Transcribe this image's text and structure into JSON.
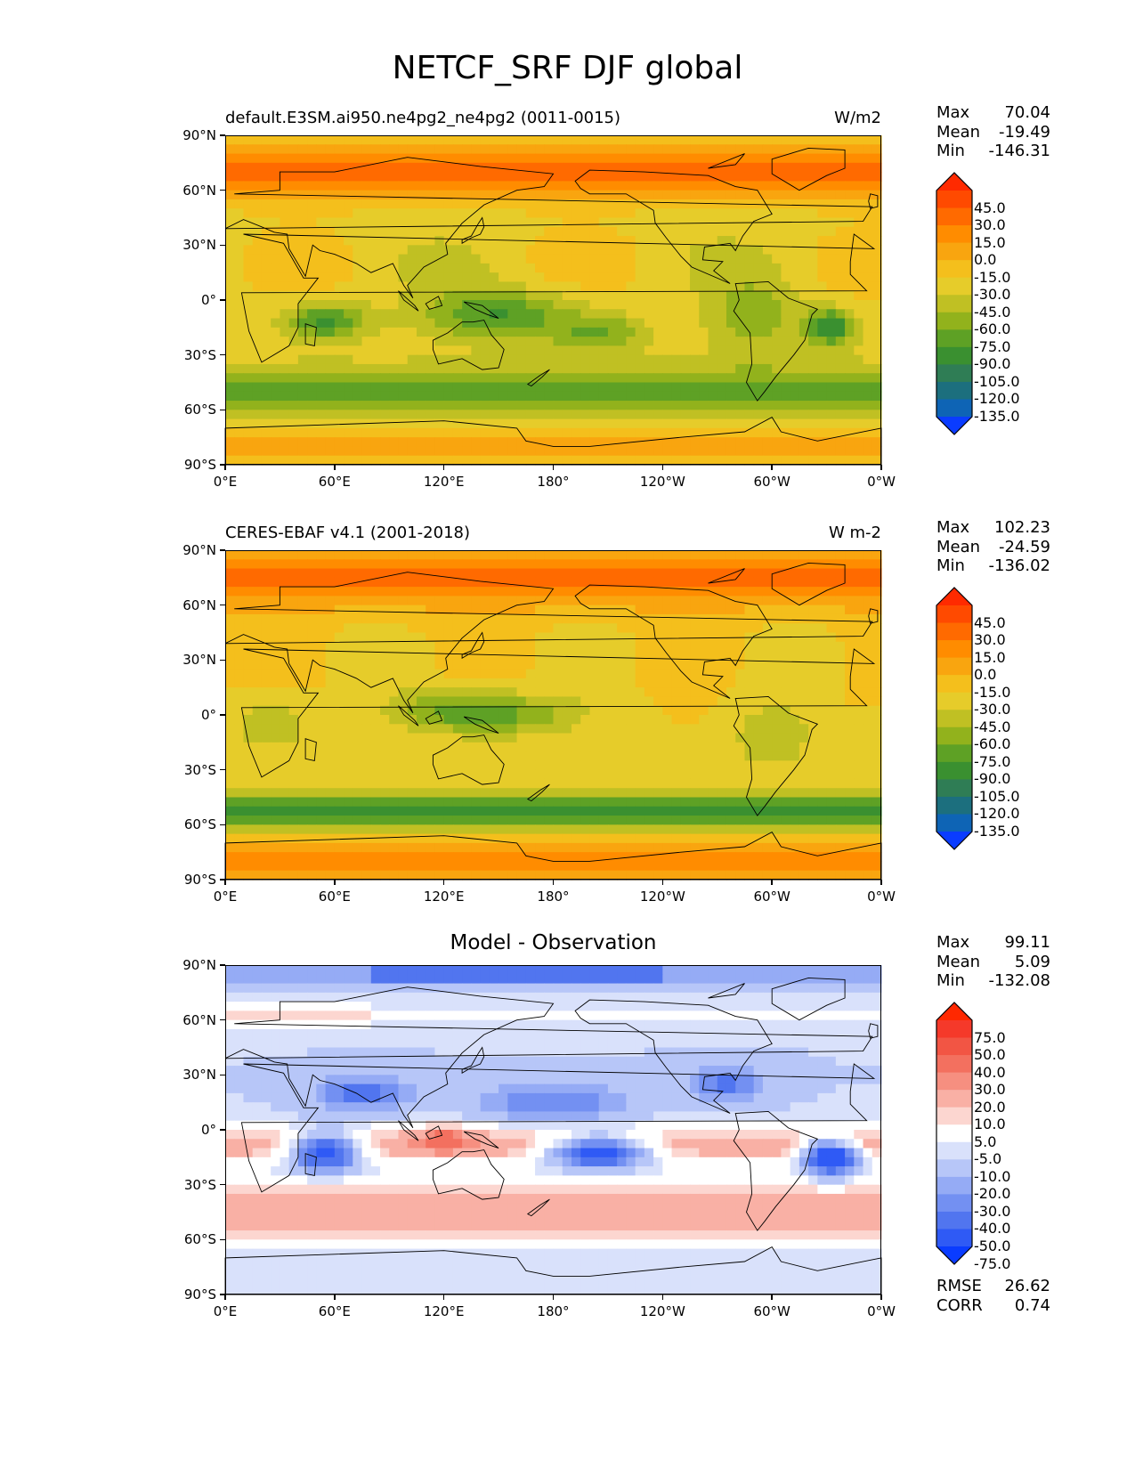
{
  "title": "NETCF_SRF DJF global",
  "panels": [
    {
      "left_title": "default.E3SM.ai950.ne4pg2_ne4pg2 (0011-0015)",
      "center_title": "",
      "right_title": "W/m2",
      "stats": [
        {
          "label": "Max",
          "value": "70.04"
        },
        {
          "label": "Mean",
          "value": "-19.49"
        },
        {
          "label": "Min",
          "value": "-146.31"
        }
      ],
      "footer_stats": [],
      "colorbar_levels": [
        "45.0",
        "30.0",
        "15.0",
        "0.0",
        "-15.0",
        "-30.0",
        "-45.0",
        "-60.0",
        "-75.0",
        "-90.0",
        "-105.0",
        "-120.0",
        "-135.0"
      ],
      "colorbar_colors": [
        "#ff2a00",
        "#ff4a00",
        "#ff6a00",
        "#ff8c00",
        "#f9a50f",
        "#f4bf1c",
        "#e6cc2a",
        "#c0c023",
        "#92b21c",
        "#5ea125",
        "#3a9030",
        "#2f7d55",
        "#1c6f7e",
        "#0e64b5",
        "#0a3cff"
      ]
    },
    {
      "left_title": "CERES-EBAF v4.1 (2001-2018)",
      "center_title": "",
      "right_title": "W m-2",
      "stats": [
        {
          "label": "Max",
          "value": "102.23"
        },
        {
          "label": "Mean",
          "value": "-24.59"
        },
        {
          "label": "Min",
          "value": "-136.02"
        }
      ],
      "footer_stats": [],
      "colorbar_levels": [
        "45.0",
        "30.0",
        "15.0",
        "0.0",
        "-15.0",
        "-30.0",
        "-45.0",
        "-60.0",
        "-75.0",
        "-90.0",
        "-105.0",
        "-120.0",
        "-135.0"
      ],
      "colorbar_colors": [
        "#ff2a00",
        "#ff4a00",
        "#ff6a00",
        "#ff8c00",
        "#f9a50f",
        "#f4bf1c",
        "#e6cc2a",
        "#c0c023",
        "#92b21c",
        "#5ea125",
        "#3a9030",
        "#2f7d55",
        "#1c6f7e",
        "#0e64b5",
        "#0a3cff"
      ]
    },
    {
      "left_title": "",
      "center_title": "Model - Observation",
      "right_title": "",
      "stats": [
        {
          "label": "Max",
          "value": "99.11"
        },
        {
          "label": "Mean",
          "value": "5.09"
        },
        {
          "label": "Min",
          "value": "-132.08"
        }
      ],
      "footer_stats": [
        {
          "label": "RMSE",
          "value": "26.62"
        },
        {
          "label": "CORR",
          "value": "0.74"
        }
      ],
      "colorbar_levels": [
        "75.0",
        "50.0",
        "40.0",
        "30.0",
        "20.0",
        "10.0",
        "5.0",
        "-5.0",
        "-10.0",
        "-20.0",
        "-30.0",
        "-40.0",
        "-50.0",
        "-75.0"
      ],
      "colorbar_colors": [
        "#ff2800",
        "#f5392a",
        "#f25544",
        "#f3705f",
        "#f68f80",
        "#f9b0a5",
        "#fcd6d0",
        "#ffffff",
        "#d9e1fb",
        "#b7c6f8",
        "#95abf5",
        "#7390f2",
        "#5175ef",
        "#2f5af5",
        "#0a3cff"
      ]
    }
  ],
  "axes": {
    "y_ticks": [
      "90°N",
      "60°N",
      "30°N",
      "0°",
      "30°S",
      "60°S",
      "90°S"
    ],
    "x_ticks": [
      "0°E",
      "60°E",
      "120°E",
      "180°",
      "120°W",
      "60°W",
      "0°W"
    ]
  },
  "chart_data": [
    {
      "type": "heatmap",
      "title": "default.E3SM.ai950.ne4pg2_ne4pg2 (0011-0015)",
      "units": "W/m2",
      "xlim": [
        0,
        360
      ],
      "ylim": [
        -90,
        90
      ],
      "xticks": [
        "0°E",
        "60°E",
        "120°E",
        "180°",
        "120°W",
        "60°W",
        "0°W"
      ],
      "yticks": [
        "90°N",
        "60°N",
        "30°N",
        "0°",
        "30°S",
        "60°S",
        "90°S"
      ],
      "max": 70.04,
      "mean": -19.49,
      "min": -146.31,
      "levels": [
        -135,
        -120,
        -105,
        -90,
        -75,
        -60,
        -45,
        -30,
        -15,
        0,
        15,
        30,
        45
      ]
    },
    {
      "type": "heatmap",
      "title": "CERES-EBAF v4.1 (2001-2018)",
      "units": "W m-2",
      "xlim": [
        0,
        360
      ],
      "ylim": [
        -90,
        90
      ],
      "xticks": [
        "0°E",
        "60°E",
        "120°E",
        "180°",
        "120°W",
        "60°W",
        "0°W"
      ],
      "yticks": [
        "90°N",
        "60°N",
        "30°N",
        "0°",
        "30°S",
        "60°S",
        "90°S"
      ],
      "max": 102.23,
      "mean": -24.59,
      "min": -136.02,
      "levels": [
        -135,
        -120,
        -105,
        -90,
        -75,
        -60,
        -45,
        -30,
        -15,
        0,
        15,
        30,
        45
      ]
    },
    {
      "type": "heatmap",
      "title": "Model - Observation",
      "xlim": [
        0,
        360
      ],
      "ylim": [
        -90,
        90
      ],
      "xticks": [
        "0°E",
        "60°E",
        "120°E",
        "180°",
        "120°W",
        "60°W",
        "0°W"
      ],
      "yticks": [
        "90°N",
        "60°N",
        "30°N",
        "0°",
        "30°S",
        "60°S",
        "90°S"
      ],
      "max": 99.11,
      "mean": 5.09,
      "min": -132.08,
      "rmse": 26.62,
      "corr": 0.74,
      "levels": [
        -75,
        -50,
        -40,
        -30,
        -20,
        -10,
        -5,
        5,
        10,
        20,
        30,
        40,
        50,
        75
      ]
    }
  ]
}
